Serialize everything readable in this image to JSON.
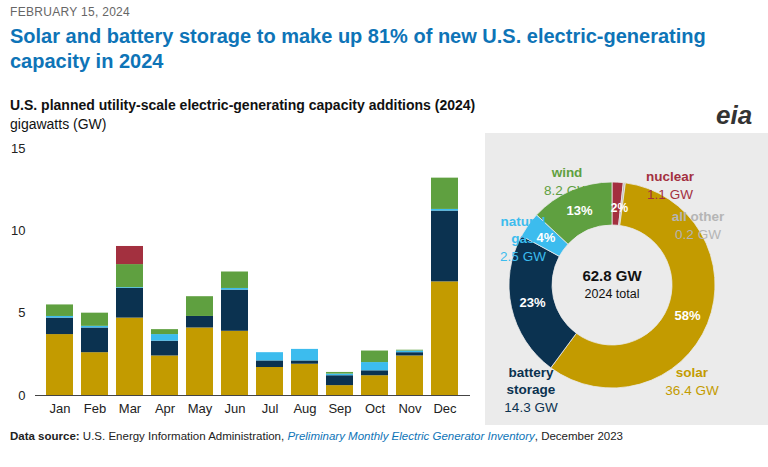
{
  "header": {
    "date": "FEBRUARY 15, 2024",
    "title": "Solar and battery storage to make up 81% of new U.S. electric-generating capacity in 2024",
    "logo": "eia"
  },
  "source": [
    "Data source:",
    " U.S. Energy Information Administration, ",
    "Preliminary Monthly Electric Generator Inventory",
    ", December 2023"
  ],
  "chart_data": [
    {
      "type": "bar",
      "stacked": true,
      "title": "U.S. planned utility-scale electric-generating capacity additions (2024)",
      "ylabel": "gigawatts (GW)",
      "categories": [
        "Jan",
        "Feb",
        "Mar",
        "Apr",
        "May",
        "Jun",
        "Jul",
        "Aug",
        "Sep",
        "Oct",
        "Nov",
        "Dec"
      ],
      "series": [
        {
          "name": "solar",
          "color": "#c39b00",
          "values": [
            3.7,
            2.6,
            4.7,
            2.4,
            4.1,
            3.9,
            1.7,
            1.9,
            0.6,
            1.2,
            2.4,
            6.9
          ]
        },
        {
          "name": "battery storage",
          "color": "#0b3250",
          "values": [
            1.0,
            1.5,
            1.8,
            0.9,
            0.7,
            2.5,
            0.4,
            0.2,
            0.6,
            0.3,
            0.2,
            4.3
          ]
        },
        {
          "name": "natural gas",
          "color": "#3cbcee",
          "values": [
            0.1,
            0.1,
            0.05,
            0.4,
            0.0,
            0.1,
            0.5,
            0.7,
            0.1,
            0.5,
            0.1,
            0.1
          ]
        },
        {
          "name": "wind",
          "color": "#5fa040",
          "values": [
            0.7,
            0.8,
            1.4,
            0.3,
            1.2,
            1.0,
            0.0,
            0.0,
            0.1,
            0.7,
            0.05,
            1.9
          ]
        },
        {
          "name": "nuclear",
          "color": "#a3303f",
          "values": [
            0,
            0,
            1.1,
            0,
            0,
            0,
            0,
            0,
            0,
            0,
            0,
            0
          ]
        }
      ],
      "ylim": [
        0,
        15
      ],
      "yticks": [
        0,
        5,
        10,
        15
      ],
      "grid": false
    },
    {
      "type": "pie",
      "categories": [
        "nuclear",
        "all other",
        "solar",
        "battery storage",
        "natural gas",
        "wind"
      ],
      "colors": [
        "#a3303f",
        "#b5b5b5",
        "#c39b00",
        "#0b3250",
        "#3cbcee",
        "#5fa040"
      ],
      "values": [
        1.1,
        0.2,
        36.4,
        14.3,
        2.5,
        8.2
      ],
      "value_labels": [
        "1.1 GW",
        "0.2 GW",
        "36.4 GW",
        "14.3 GW",
        "2.5 GW",
        "8.2 GW"
      ],
      "percentages": [
        2,
        null,
        58,
        23,
        4,
        13
      ],
      "percent_labels": [
        "2%",
        null,
        "58%",
        "23%",
        "4%",
        "13%"
      ],
      "total": 62.8,
      "total_label": "62.8 GW",
      "total_caption": "2024 total",
      "data_labels": true
    }
  ]
}
